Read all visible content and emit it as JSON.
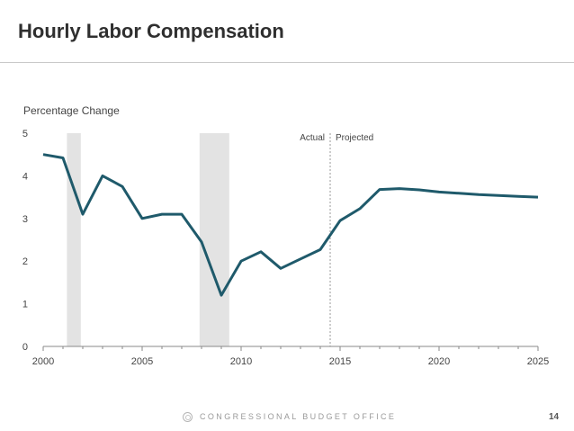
{
  "slide": {
    "title": "Hourly Labor Compensation",
    "footer_org": "CONGRESSIONAL BUDGET OFFICE",
    "page_number": "14"
  },
  "colors": {
    "line": "#1f5a6b",
    "recession_band": "#e3e3e3",
    "axis": "#888888",
    "divider": "#999999"
  },
  "chart_data": {
    "type": "line",
    "ylabel": "Percentage Change",
    "xlabel": "",
    "xlim": [
      2000,
      2025
    ],
    "ylim": [
      0,
      5
    ],
    "x_ticks": [
      "2000",
      "2005",
      "2010",
      "2015",
      "2020",
      "2025"
    ],
    "y_ticks": [
      "0",
      "1",
      "2",
      "3",
      "4",
      "5"
    ],
    "grid": false,
    "annotations": {
      "actual": "Actual",
      "projected": "Projected",
      "divider_x": 2014.5
    },
    "recession_bands": [
      [
        2001.2,
        2001.9
      ],
      [
        2007.9,
        2009.4
      ]
    ],
    "series": [
      {
        "x": [
          2000,
          2001,
          2002,
          2003,
          2004,
          2005,
          2006,
          2007,
          2008,
          2009,
          2010,
          2011,
          2012,
          2013,
          2014,
          2015,
          2016,
          2017,
          2018,
          2019,
          2020,
          2021,
          2022,
          2023,
          2024,
          2025
        ],
        "values": [
          4.5,
          4.42,
          3.1,
          4.0,
          3.75,
          3.0,
          3.1,
          3.1,
          2.45,
          1.2,
          2.0,
          2.22,
          1.83,
          2.05,
          2.27,
          2.95,
          3.23,
          3.68,
          3.7,
          3.67,
          3.62,
          3.59,
          3.56,
          3.54,
          3.52,
          3.5
        ]
      }
    ]
  }
}
